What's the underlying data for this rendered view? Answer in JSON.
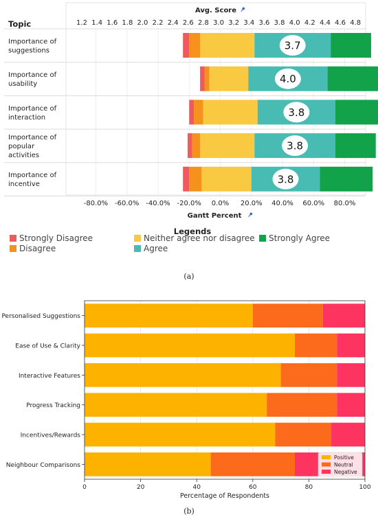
{
  "captions": {
    "a": "(a)",
    "b": "(b)"
  },
  "colors": {
    "strongly_disagree": "#ef5a5c",
    "disagree": "#f5921e",
    "neutral": "#f9c941",
    "agree": "#48bbb3",
    "strongly_agree": "#12a24a",
    "b_positive": "#fdb200",
    "b_neutral": "#fc6a1b",
    "b_negative": "#fd3460"
  },
  "chart_data": [
    {
      "type": "bar",
      "subtype": "diverging-stacked",
      "row_header": "Topic",
      "top_axis_title": "Avg. Score",
      "top_axis_icon": "pin-icon",
      "top_axis_ticks": [
        "1.2",
        "1.4",
        "1.6",
        "1.8",
        "2.0",
        "2.2",
        "2.4",
        "2.6",
        "2.8",
        "3.0",
        "3.2",
        "3.4",
        "3.6",
        "3.8",
        "4.0",
        "4.2",
        "4.4",
        "4.6",
        "4.8"
      ],
      "bottom_axis_title": "Gantt Percent",
      "bottom_axis_icon": "pin-icon",
      "bottom_axis_ticks": [
        "-80.0%",
        "-60.0%",
        "-40.0%",
        "-20.0%",
        "0.0%",
        "20.0%",
        "40.0%",
        "60.0%",
        "80.0%"
      ],
      "xlim": [
        -100,
        100
      ],
      "categories": [
        "Importance of suggestions",
        "Importance of usability",
        "Importance of interaction",
        "Importance of popular activities",
        "Importance of incentive"
      ],
      "category_lines": [
        [
          "Importance of",
          "suggestions"
        ],
        [
          "Importance of",
          "usability"
        ],
        [
          "Importance of",
          "interaction"
        ],
        [
          "Importance of",
          "popular",
          "activities"
        ],
        [
          "Importance of",
          "incentive"
        ]
      ],
      "avg_scores": [
        "3.7",
        "4.0",
        "3.8",
        "3.8",
        "3.8"
      ],
      "series": [
        {
          "name": "Strongly Disagree",
          "values": [
            4,
            3,
            3,
            3,
            4
          ]
        },
        {
          "name": "Disagree",
          "values": [
            7,
            3,
            6,
            5,
            8
          ]
        },
        {
          "name": "Neither agree nor disagree",
          "values": [
            35,
            25,
            35,
            35,
            32
          ]
        },
        {
          "name": "Agree",
          "values": [
            49,
            51,
            50,
            52,
            44
          ]
        },
        {
          "name": "Strongly Agree",
          "values": [
            26,
            36,
            31,
            26,
            34
          ]
        }
      ],
      "left_start": [
        -24,
        -13,
        -20,
        -21,
        -24
      ],
      "legend_title": "Legends",
      "legend_placement": "bottom"
    },
    {
      "type": "bar",
      "subtype": "horizontal-stacked",
      "categories": [
        "Personalised Suggestions",
        "Ease of Use & Clarity",
        "Interactive Features",
        "Progress Tracking",
        "Incentives/Rewards",
        "Neighbour Comparisons"
      ],
      "series": [
        {
          "name": "Positive",
          "values": [
            60,
            75,
            70,
            65,
            68,
            45
          ]
        },
        {
          "name": "Neutral",
          "values": [
            25,
            15,
            20,
            25,
            20,
            30
          ]
        },
        {
          "name": "Negative",
          "values": [
            15,
            10,
            10,
            10,
            12,
            25
          ]
        }
      ],
      "xlabel": "Percentage of Respondents",
      "xlim": [
        0,
        100
      ],
      "xticks": [
        "0",
        "20",
        "40",
        "60",
        "80",
        "100"
      ],
      "legend_placement": "bottom-right"
    }
  ]
}
